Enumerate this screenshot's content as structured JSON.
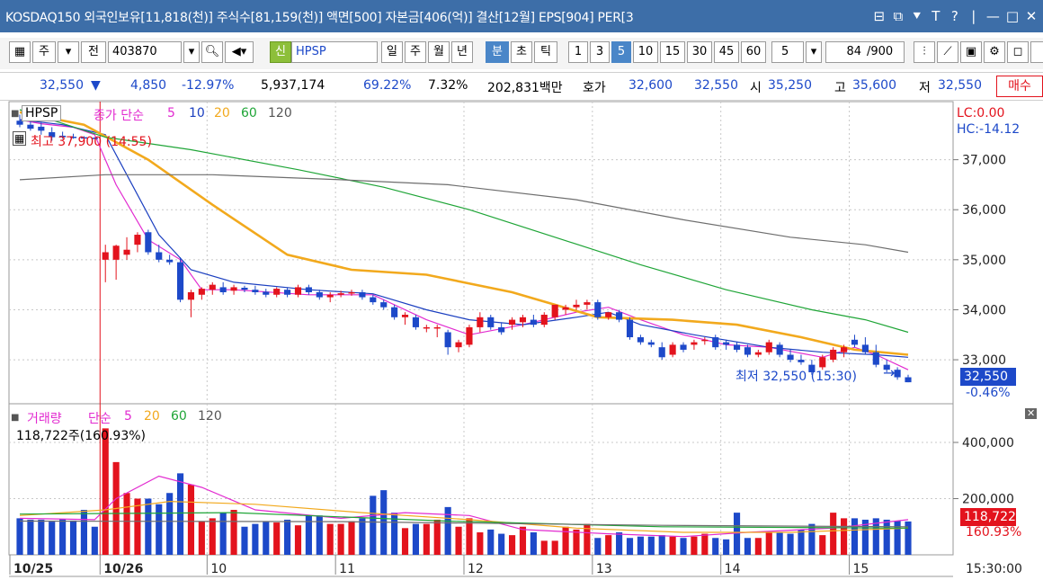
{
  "window": {
    "title": "KOSDAQ150 외국인보유[11,818(천)] 주식수[81,159(천)] 액면[500] 자본금[406(억)] 결산[12월] EPS[904] PER[3",
    "buttons": [
      "⊟",
      "⧉",
      "⯆",
      "T",
      "?",
      "|",
      "—",
      "□",
      "✕"
    ]
  },
  "toolbar": {
    "period_select": "주",
    "all_label": "전",
    "code": "403870",
    "stock_badge": "신",
    "stock_name": "HPSP",
    "period_tabs": [
      "일",
      "주",
      "월",
      "년",
      "분",
      "초",
      "틱"
    ],
    "active_period": "분",
    "intervals": [
      "1",
      "3",
      "5",
      "10",
      "15",
      "30",
      "45",
      "60"
    ],
    "active_interval": "5",
    "interval_select": "5",
    "count": "84",
    "count_total": "/900"
  },
  "quote": {
    "price": "32,550",
    "change_arrow": "▼",
    "change": "4,850",
    "change_rate": "-12.97%",
    "volume": "5,937,174",
    "vol_ratio": "69.22%",
    "turnover": "7.32%",
    "amount": "202,831백만",
    "bid_ask_label": "호가",
    "ask_price": "32,600",
    "bid_price": "32,550",
    "open_label": "시",
    "open": "35,250",
    "high_label": "고",
    "high": "35,600",
    "low_label": "저",
    "low": "32,550",
    "order_button": "매수"
  },
  "price_panel": {
    "name_tag": "HPSP",
    "indicator_title": "종가 단순",
    "ma_labels": [
      "5",
      "10",
      "20",
      "60",
      "120"
    ],
    "max_annotation": "최고 37,900 (14:55)",
    "min_annotation": "최저 32,550 (15:30)",
    "lc_label": "LC:0.00",
    "hc_label": "HC:-14.12",
    "current_box": "32,550",
    "current_change": "-0.46%",
    "y_ticks": [
      "37,000",
      "36,000",
      "35,000",
      "34,000",
      "33,000"
    ]
  },
  "volume_panel": {
    "title": "거래량",
    "indicator_title": "단순",
    "ma_labels": [
      "5",
      "20",
      "60",
      "120"
    ],
    "value_label": "118,722주(160.93%)",
    "current_box": "118,722",
    "current_pct": "160.93%",
    "y_ticks": [
      "400,000",
      "200,000"
    ]
  },
  "x_axis": {
    "labels": [
      "10/25",
      "10/26",
      "10",
      "11",
      "12",
      "13",
      "14",
      "15"
    ],
    "time": "15:30:00"
  },
  "colors": {
    "up": "#e3131d",
    "down": "#1d49c9",
    "ma5": "#e22bd0",
    "ma10": "#1b3fc0",
    "ma20": "#f2a91d",
    "ma60": "#1fa537",
    "ma120": "#6e6e6e"
  },
  "chart_data": {
    "type": "candlestick",
    "y_range": [
      32300,
      38000
    ],
    "candles": [
      {
        "o": 37780,
        "h": 37900,
        "l": 37650,
        "c": 37700
      },
      {
        "o": 37700,
        "h": 37780,
        "l": 37580,
        "c": 37620
      },
      {
        "o": 37660,
        "h": 37760,
        "l": 37500,
        "c": 37580
      },
      {
        "o": 37550,
        "h": 37650,
        "l": 37380,
        "c": 37450
      },
      {
        "o": 37480,
        "h": 37560,
        "l": 37420,
        "c": 37450
      },
      {
        "o": 37460,
        "h": 37520,
        "l": 37420,
        "c": 37450
      },
      {
        "o": 37450,
        "h": 37470,
        "l": 37430,
        "c": 37440
      },
      {
        "o": 37440,
        "h": 37450,
        "l": 37420,
        "c": 37430
      },
      {
        "o": 35000,
        "h": 35300,
        "l": 34550,
        "c": 35150
      },
      {
        "o": 35000,
        "h": 35300,
        "l": 34600,
        "c": 35280
      },
      {
        "o": 35100,
        "h": 35450,
        "l": 35000,
        "c": 35200
      },
      {
        "o": 35300,
        "h": 35550,
        "l": 35150,
        "c": 35500
      },
      {
        "o": 35550,
        "h": 35600,
        "l": 35100,
        "c": 35150
      },
      {
        "o": 35150,
        "h": 35300,
        "l": 34950,
        "c": 35000
      },
      {
        "o": 35000,
        "h": 35100,
        "l": 34900,
        "c": 34950
      },
      {
        "o": 34950,
        "h": 35050,
        "l": 34150,
        "c": 34200
      },
      {
        "o": 34200,
        "h": 34400,
        "l": 33850,
        "c": 34350
      },
      {
        "o": 34300,
        "h": 34450,
        "l": 34200,
        "c": 34420
      },
      {
        "o": 34400,
        "h": 34550,
        "l": 34300,
        "c": 34500
      },
      {
        "o": 34450,
        "h": 34550,
        "l": 34300,
        "c": 34350
      },
      {
        "o": 34380,
        "h": 34500,
        "l": 34300,
        "c": 34450
      },
      {
        "o": 34440,
        "h": 34480,
        "l": 34350,
        "c": 34400
      },
      {
        "o": 34400,
        "h": 34480,
        "l": 34300,
        "c": 34350
      },
      {
        "o": 34360,
        "h": 34420,
        "l": 34250,
        "c": 34300
      },
      {
        "o": 34300,
        "h": 34450,
        "l": 34250,
        "c": 34420
      },
      {
        "o": 34400,
        "h": 34450,
        "l": 34250,
        "c": 34300
      },
      {
        "o": 34300,
        "h": 34500,
        "l": 34250,
        "c": 34450
      },
      {
        "o": 34450,
        "h": 34500,
        "l": 34300,
        "c": 34350
      },
      {
        "o": 34350,
        "h": 34400,
        "l": 34200,
        "c": 34250
      },
      {
        "o": 34250,
        "h": 34350,
        "l": 34150,
        "c": 34300
      },
      {
        "o": 34300,
        "h": 34380,
        "l": 34250,
        "c": 34330
      },
      {
        "o": 34330,
        "h": 34400,
        "l": 34280,
        "c": 34350
      },
      {
        "o": 34350,
        "h": 34400,
        "l": 34200,
        "c": 34250
      },
      {
        "o": 34250,
        "h": 34300,
        "l": 34100,
        "c": 34150
      },
      {
        "o": 34150,
        "h": 34200,
        "l": 34000,
        "c": 34050
      },
      {
        "o": 34050,
        "h": 34100,
        "l": 33800,
        "c": 33850
      },
      {
        "o": 33850,
        "h": 33950,
        "l": 33700,
        "c": 33900
      },
      {
        "o": 33850,
        "h": 33900,
        "l": 33600,
        "c": 33650
      },
      {
        "o": 33650,
        "h": 33700,
        "l": 33550,
        "c": 33650
      },
      {
        "o": 33650,
        "h": 33700,
        "l": 33450,
        "c": 33650
      },
      {
        "o": 33550,
        "h": 33600,
        "l": 33100,
        "c": 33250
      },
      {
        "o": 33250,
        "h": 33400,
        "l": 33150,
        "c": 33350
      },
      {
        "o": 33300,
        "h": 33700,
        "l": 33250,
        "c": 33650
      },
      {
        "o": 33650,
        "h": 33950,
        "l": 33550,
        "c": 33850
      },
      {
        "o": 33850,
        "h": 33900,
        "l": 33600,
        "c": 33650
      },
      {
        "o": 33650,
        "h": 33750,
        "l": 33500,
        "c": 33550
      },
      {
        "o": 33700,
        "h": 33850,
        "l": 33600,
        "c": 33800
      },
      {
        "o": 33750,
        "h": 33900,
        "l": 33650,
        "c": 33850
      },
      {
        "o": 33800,
        "h": 33900,
        "l": 33650,
        "c": 33700
      },
      {
        "o": 33700,
        "h": 33950,
        "l": 33650,
        "c": 33900
      },
      {
        "o": 33850,
        "h": 34100,
        "l": 33800,
        "c": 34100
      },
      {
        "o": 34000,
        "h": 34100,
        "l": 33900,
        "c": 34050
      },
      {
        "o": 34050,
        "h": 34200,
        "l": 34000,
        "c": 34100
      },
      {
        "o": 34100,
        "h": 34200,
        "l": 34000,
        "c": 34150
      },
      {
        "o": 34150,
        "h": 34200,
        "l": 33800,
        "c": 33850
      },
      {
        "o": 33850,
        "h": 33950,
        "l": 33800,
        "c": 33950
      },
      {
        "o": 33950,
        "h": 34000,
        "l": 33750,
        "c": 33800
      },
      {
        "o": 33800,
        "h": 33850,
        "l": 33400,
        "c": 33450
      },
      {
        "o": 33450,
        "h": 33500,
        "l": 33300,
        "c": 33350
      },
      {
        "o": 33350,
        "h": 33400,
        "l": 33250,
        "c": 33300
      },
      {
        "o": 33250,
        "h": 33350,
        "l": 33000,
        "c": 33050
      },
      {
        "o": 33100,
        "h": 33350,
        "l": 33050,
        "c": 33300
      },
      {
        "o": 33300,
        "h": 33350,
        "l": 33150,
        "c": 33200
      },
      {
        "o": 33300,
        "h": 33400,
        "l": 33200,
        "c": 33350
      },
      {
        "o": 33400,
        "h": 33450,
        "l": 33300,
        "c": 33400
      },
      {
        "o": 33450,
        "h": 33500,
        "l": 33200,
        "c": 33250
      },
      {
        "o": 33350,
        "h": 33400,
        "l": 33200,
        "c": 33300
      },
      {
        "o": 33300,
        "h": 33350,
        "l": 33150,
        "c": 33200
      },
      {
        "o": 33250,
        "h": 33300,
        "l": 33050,
        "c": 33100
      },
      {
        "o": 33100,
        "h": 33200,
        "l": 33050,
        "c": 33150
      },
      {
        "o": 33150,
        "h": 33400,
        "l": 33100,
        "c": 33350
      },
      {
        "o": 33300,
        "h": 33350,
        "l": 33050,
        "c": 33100
      },
      {
        "o": 33100,
        "h": 33200,
        "l": 32950,
        "c": 33000
      },
      {
        "o": 33000,
        "h": 33100,
        "l": 32900,
        "c": 32950
      },
      {
        "o": 32900,
        "h": 33000,
        "l": 32700,
        "c": 32750
      },
      {
        "o": 32850,
        "h": 33100,
        "l": 32800,
        "c": 33050
      },
      {
        "o": 33000,
        "h": 33250,
        "l": 32950,
        "c": 33200
      },
      {
        "o": 33150,
        "h": 33300,
        "l": 33050,
        "c": 33250
      },
      {
        "o": 33400,
        "h": 33500,
        "l": 33250,
        "c": 33300
      },
      {
        "o": 33300,
        "h": 33450,
        "l": 33100,
        "c": 33150
      },
      {
        "o": 33150,
        "h": 33300,
        "l": 32850,
        "c": 32900
      },
      {
        "o": 32900,
        "h": 33000,
        "l": 32750,
        "c": 32800
      },
      {
        "o": 32800,
        "h": 32850,
        "l": 32600,
        "c": 32650
      },
      {
        "o": 32650,
        "h": 32700,
        "l": 32550,
        "c": 32550
      }
    ],
    "volume_range": [
      0,
      480000
    ],
    "volume": [
      130000,
      125000,
      125000,
      118000,
      128000,
      122000,
      160000,
      100000,
      450000,
      330000,
      220000,
      200000,
      200000,
      180000,
      220000,
      290000,
      250000,
      120000,
      130000,
      150000,
      160000,
      100000,
      110000,
      120000,
      115000,
      125000,
      105000,
      140000,
      140000,
      110000,
      110000,
      120000,
      130000,
      210000,
      230000,
      150000,
      95000,
      110000,
      110000,
      125000,
      170000,
      100000,
      130000,
      80000,
      90000,
      75000,
      70000,
      100000,
      80000,
      50000,
      50000,
      100000,
      90000,
      110000,
      60000,
      70000,
      80000,
      60000,
      65000,
      65000,
      70000,
      65000,
      60000,
      65000,
      75000,
      60000,
      55000,
      150000,
      60000,
      60000,
      80000,
      80000,
      75000,
      90000,
      110000,
      70000,
      150000,
      130000,
      130000,
      125000,
      130000,
      125000,
      120000,
      118722
    ],
    "ma_price": {
      "ma5": [
        [
          0,
          37800
        ],
        [
          2,
          37720
        ],
        [
          5,
          37650
        ],
        [
          7,
          37500
        ],
        [
          9,
          36500
        ],
        [
          12,
          35400
        ],
        [
          15,
          35000
        ],
        [
          17,
          34400
        ],
        [
          20,
          34400
        ],
        [
          27,
          34300
        ],
        [
          33,
          34300
        ],
        [
          38,
          33800
        ],
        [
          42,
          33500
        ],
        [
          47,
          33700
        ],
        [
          52,
          33950
        ],
        [
          55,
          34050
        ],
        [
          58,
          33800
        ],
        [
          62,
          33500
        ],
        [
          66,
          33300
        ],
        [
          70,
          33250
        ],
        [
          75,
          33050
        ],
        [
          78,
          33250
        ],
        [
          80,
          33100
        ],
        [
          83,
          32800
        ]
      ],
      "ma10": [
        [
          0,
          37800
        ],
        [
          4,
          37700
        ],
        [
          8,
          37500
        ],
        [
          10,
          36700
        ],
        [
          13,
          35500
        ],
        [
          16,
          34800
        ],
        [
          20,
          34550
        ],
        [
          27,
          34400
        ],
        [
          33,
          34320
        ],
        [
          38,
          34000
        ],
        [
          42,
          33800
        ],
        [
          47,
          33700
        ],
        [
          52,
          33850
        ],
        [
          55,
          33950
        ],
        [
          58,
          33700
        ],
        [
          63,
          33500
        ],
        [
          70,
          33250
        ],
        [
          75,
          33150
        ],
        [
          80,
          33100
        ],
        [
          83,
          33050
        ]
      ],
      "ma20": [
        [
          0,
          37950
        ],
        [
          6,
          37700
        ],
        [
          12,
          37000
        ],
        [
          18,
          36100
        ],
        [
          25,
          35100
        ],
        [
          31,
          34800
        ],
        [
          38,
          34700
        ],
        [
          46,
          34350
        ],
        [
          54,
          33850
        ],
        [
          61,
          33800
        ],
        [
          67,
          33700
        ],
        [
          73,
          33450
        ],
        [
          78,
          33200
        ],
        [
          83,
          33100
        ]
      ],
      "ma60": [
        [
          0,
          38000
        ],
        [
          8,
          37450
        ],
        [
          16,
          37200
        ],
        [
          26,
          36800
        ],
        [
          34,
          36450
        ],
        [
          42,
          36000
        ],
        [
          50,
          35450
        ],
        [
          58,
          34900
        ],
        [
          66,
          34400
        ],
        [
          74,
          34000
        ],
        [
          79,
          33800
        ],
        [
          83,
          33550
        ]
      ],
      "ma120": [
        [
          0,
          36600
        ],
        [
          8,
          36700
        ],
        [
          18,
          36700
        ],
        [
          30,
          36600
        ],
        [
          40,
          36500
        ],
        [
          52,
          36200
        ],
        [
          62,
          35800
        ],
        [
          72,
          35450
        ],
        [
          79,
          35300
        ],
        [
          83,
          35150
        ]
      ]
    },
    "ma_volume": {
      "ma5": [
        [
          0,
          130000
        ],
        [
          7,
          125000
        ],
        [
          9,
          200000
        ],
        [
          13,
          280000
        ],
        [
          17,
          240000
        ],
        [
          22,
          160000
        ],
        [
          30,
          130000
        ],
        [
          36,
          150000
        ],
        [
          42,
          140000
        ],
        [
          47,
          90000
        ],
        [
          55,
          75000
        ],
        [
          62,
          65000
        ],
        [
          68,
          80000
        ],
        [
          76,
          95000
        ],
        [
          83,
          125000
        ]
      ],
      "ma20": [
        [
          0,
          140000
        ],
        [
          8,
          160000
        ],
        [
          14,
          190000
        ],
        [
          22,
          180000
        ],
        [
          32,
          150000
        ],
        [
          42,
          125000
        ],
        [
          52,
          95000
        ],
        [
          62,
          80000
        ],
        [
          72,
          80000
        ],
        [
          83,
          95000
        ]
      ],
      "ma60": [
        [
          0,
          145000
        ],
        [
          20,
          150000
        ],
        [
          40,
          120000
        ],
        [
          60,
          100000
        ],
        [
          83,
          95000
        ]
      ],
      "ma120": [
        [
          0,
          120000
        ],
        [
          30,
          118000
        ],
        [
          60,
          105000
        ],
        [
          83,
          100000
        ]
      ]
    }
  }
}
